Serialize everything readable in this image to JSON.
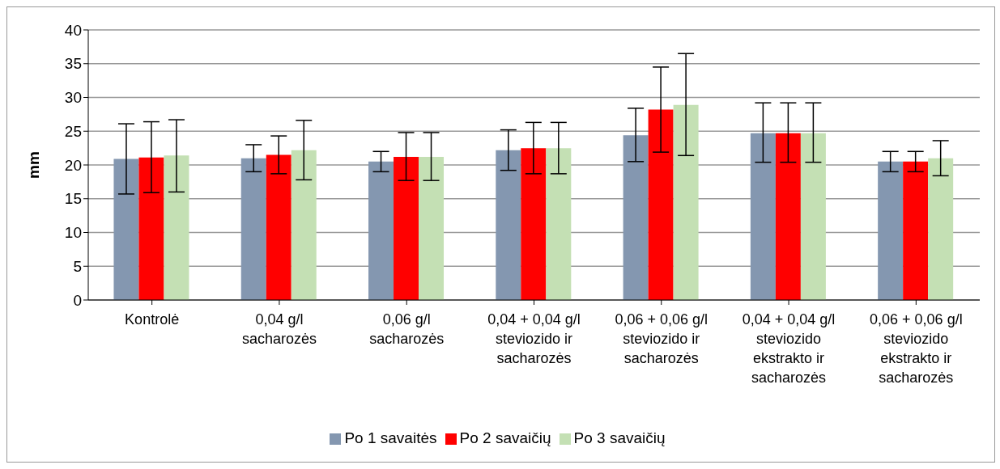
{
  "chart_data": {
    "type": "bar",
    "ylabel": "mm",
    "categories": [
      "Kontrolė",
      "0,04 g/l sacharozės",
      "0,06 g/l sacharozės",
      "0,04 + 0,04 g/l steviozido ir sacharozės",
      "0,06 + 0,06 g/l steviozido ir sacharozės",
      "0,04 + 0,04 g/l steviozido ekstrakto ir sacharozės",
      "0,06 + 0,06 g/l steviozido ekstrakto ir sacharozės"
    ],
    "series": [
      {
        "name": "Po 1 savaitės",
        "color": "#8497b0",
        "values": [
          20.9,
          21.0,
          20.5,
          22.2,
          24.4,
          24.7,
          20.5
        ],
        "errors": [
          [
            15.7,
            26.1
          ],
          [
            19.0,
            23.0
          ],
          [
            19.0,
            22.0
          ],
          [
            19.2,
            25.2
          ],
          [
            20.5,
            28.4
          ],
          [
            20.4,
            29.2
          ],
          [
            19.0,
            22.0
          ]
        ]
      },
      {
        "name": "Po 2 savaičių",
        "color": "#ff0000",
        "values": [
          21.1,
          21.5,
          21.2,
          22.5,
          28.2,
          24.7,
          20.5
        ],
        "errors": [
          [
            15.9,
            26.4
          ],
          [
            18.7,
            24.3
          ],
          [
            17.7,
            24.8
          ],
          [
            18.7,
            26.3
          ],
          [
            21.9,
            34.5
          ],
          [
            20.4,
            29.2
          ],
          [
            19.0,
            22.0
          ]
        ]
      },
      {
        "name": "Po 3 savaičių",
        "color": "#c4e0b4",
        "values": [
          21.4,
          22.2,
          21.2,
          22.5,
          28.9,
          24.7,
          21.0
        ],
        "errors": [
          [
            16.0,
            26.7
          ],
          [
            17.8,
            26.6
          ],
          [
            17.7,
            24.8
          ],
          [
            18.7,
            26.3
          ],
          [
            21.4,
            36.5
          ],
          [
            20.4,
            29.2
          ],
          [
            18.4,
            23.6
          ]
        ]
      }
    ],
    "ylim": [
      0,
      40
    ],
    "yticks": [
      0,
      5,
      10,
      15,
      20,
      25,
      30,
      35,
      40
    ],
    "grid": "y",
    "legend": "bottom"
  }
}
